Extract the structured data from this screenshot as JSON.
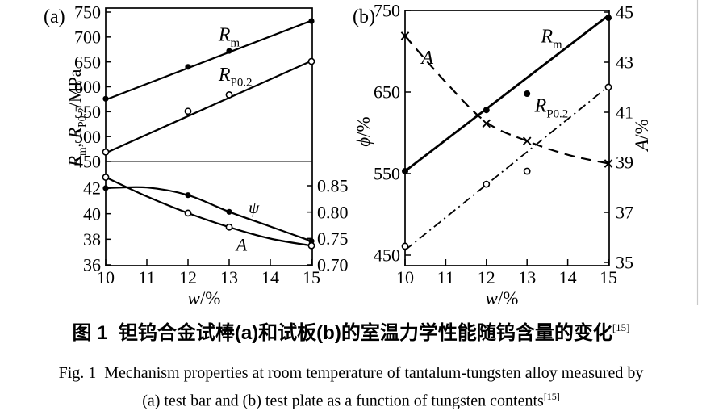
{
  "figure": {
    "caption_zh": "图 1  钽钨合金试棒(a)和试板(b)的室温力学性能随钨含量的变化",
    "reference_sup": "[15]",
    "caption_en_line1": "Fig. 1  Mechanism properties at room temperature of tantalum-tungsten alloy measured by",
    "caption_en_line2": "(a) test bar and (b) test plate as a function of tungsten contents"
  },
  "colors": {
    "ink": "#000000",
    "background": "#ffffff",
    "page_edge": "#c9c9c9"
  },
  "chart_data": [
    {
      "id": "a",
      "type": "line",
      "panel_label": "(a)",
      "xlabel_parts": [
        {
          "t": "w",
          "i": true
        },
        {
          "t": "/%"
        }
      ],
      "xlim": [
        10,
        15
      ],
      "x_ticks": [
        "10",
        "11",
        "12",
        "13",
        "14",
        "15"
      ],
      "panels": [
        {
          "name": "strength",
          "ylabel_parts": [
            {
              "t": "R",
              "i": true
            },
            {
              "t": "m",
              "sub": true
            },
            {
              "t": ", "
            },
            {
              "t": "R",
              "i": true
            },
            {
              "t": "P0.2",
              "sub": true
            },
            {
              "t": "/MPa"
            }
          ],
          "ylim": [
            450,
            750
          ],
          "y_ticks": [
            "450",
            "500",
            "550",
            "600",
            "650",
            "700",
            "750"
          ],
          "series": [
            {
              "name": "Rm",
              "label_parts": [
                {
                  "t": "R",
                  "i": true
                },
                {
                  "t": "m",
                  "sub": true
                }
              ],
              "line": "solid",
              "marker": "dot",
              "trend": [
                [
                  10,
                  574
                ],
                [
                  15,
                  733
                ]
              ],
              "points": [
                [
                  10,
                  576
                ],
                [
                  12,
                  640
                ],
                [
                  13,
                  672
                ],
                [
                  15,
                  732
                ]
              ],
              "label_at": [
                13.0,
                706
              ],
              "label_fs": 24
            },
            {
              "name": "RP0.2",
              "label_parts": [
                {
                  "t": "R",
                  "i": true
                },
                {
                  "t": "P0.2",
                  "sub": true
                }
              ],
              "line": "solid",
              "marker": "circle",
              "trend": [
                [
                  10,
                  467
                ],
                [
                  15,
                  652
                ]
              ],
              "points": [
                [
                  10,
                  469
                ],
                [
                  12,
                  551
                ],
                [
                  13,
                  584
                ],
                [
                  15,
                  651
                ]
              ],
              "label_at": [
                13.15,
                626
              ],
              "label_fs": 24
            }
          ]
        },
        {
          "name": "ductility",
          "ylim": [
            36,
            42
          ],
          "y_ticks": [
            "36",
            "38",
            "40",
            "42"
          ],
          "right_lim": [
            0.7,
            0.85
          ],
          "right_ticks": [
            "0.70",
            "0.75",
            "0.80",
            "0.85"
          ],
          "series": [
            {
              "name": "psi",
              "label_parts": [
                {
                  "t": "ψ",
                  "i": true
                }
              ],
              "line": "solid",
              "marker": "dot",
              "smooth": true,
              "curve": [
                [
                  10,
                  42.0
                ],
                [
                  11,
                  42.05
                ],
                [
                  12,
                  41.45
                ],
                [
                  13,
                  40.15
                ],
                [
                  14,
                  39.0
                ],
                [
                  15,
                  37.85
                ]
              ],
              "points": [
                [
                  10,
                  42.0
                ],
                [
                  12,
                  41.45
                ],
                [
                  13,
                  40.15
                ],
                [
                  15,
                  37.85
                ]
              ],
              "label_at": [
                13.6,
                40.5
              ],
              "label_fs": 21
            },
            {
              "name": "A",
              "label_parts": [
                {
                  "t": "A",
                  "i": true
                }
              ],
              "line": "solid",
              "marker": "circle",
              "smooth": true,
              "curve": [
                [
                  10,
                  42.85
                ],
                [
                  11,
                  41.35
                ],
                [
                  12,
                  40.05
                ],
                [
                  13,
                  38.95
                ],
                [
                  14,
                  38.05
                ],
                [
                  15,
                  37.5
                ]
              ],
              "points": [
                [
                  10,
                  42.85
                ],
                [
                  12,
                  40.05
                ],
                [
                  13,
                  38.95
                ],
                [
                  15,
                  37.5
                ]
              ],
              "label_at": [
                13.3,
                37.6
              ],
              "label_fs": 22
            }
          ]
        }
      ]
    },
    {
      "id": "b",
      "type": "line",
      "panel_label": "(b)",
      "xlabel_parts": [
        {
          "t": "w",
          "i": true
        },
        {
          "t": "/%"
        }
      ],
      "xlim": [
        10,
        15
      ],
      "x_ticks": [
        "10",
        "11",
        "12",
        "13",
        "14",
        "15"
      ],
      "ylabel_left_parts": [
        {
          "t": "ϕ",
          "i": true
        },
        {
          "t": "/%"
        }
      ],
      "ylabel_right_parts": [
        {
          "t": "A",
          "i": true
        },
        {
          "t": "/%"
        }
      ],
      "ylim_left": [
        450,
        750
      ],
      "y_ticks_left": [
        "450",
        "550",
        "650",
        "750"
      ],
      "ylim_right": [
        35,
        45
      ],
      "y_ticks_right": [
        "35",
        "37",
        "39",
        "41",
        "43",
        "45"
      ],
      "series": [
        {
          "name": "Rm",
          "axis": "left",
          "label_parts": [
            {
              "t": "R",
              "i": true
            },
            {
              "t": "m",
              "sub": true
            }
          ],
          "line": "solid",
          "width": 2.8,
          "marker": "dot",
          "marker_r": 4,
          "trend": [
            [
              10,
              553
            ],
            [
              15,
              744
            ]
          ],
          "points": [
            [
              10,
              553
            ],
            [
              12,
              628
            ],
            [
              13,
              648
            ],
            [
              15,
              741
            ]
          ],
          "label_at": [
            13.6,
            719
          ],
          "label_fs": 24
        },
        {
          "name": "RP0.2",
          "axis": "left",
          "label_parts": [
            {
              "t": "R",
              "i": true
            },
            {
              "t": "P0.2",
              "sub": true
            }
          ],
          "line": "dashdot",
          "width": 1.8,
          "marker": "circle",
          "trend": [
            [
              10,
              456
            ],
            [
              15,
              657
            ]
          ],
          "points": [
            [
              10,
              461
            ],
            [
              12,
              537
            ],
            [
              13,
              553
            ],
            [
              15,
              656
            ]
          ],
          "label_at": [
            13.6,
            634
          ],
          "label_fs": 24
        },
        {
          "name": "A",
          "axis": "right",
          "label_parts": [
            {
              "t": "A",
              "i": true
            }
          ],
          "line": "dashed",
          "width": 2.2,
          "marker": "x",
          "smooth": true,
          "curve": [
            [
              10,
              44.05
            ],
            [
              11,
              42.2
            ],
            [
              12,
              40.6
            ],
            [
              13,
              39.85
            ],
            [
              14,
              39.3
            ],
            [
              15,
              38.95
            ]
          ],
          "points": [
            [
              10,
              44.05
            ],
            [
              12,
              40.55
            ],
            [
              13,
              39.85
            ],
            [
              15,
              38.95
            ]
          ],
          "label_at": [
            10.55,
            43.2
          ],
          "label_fs": 24
        }
      ]
    }
  ]
}
